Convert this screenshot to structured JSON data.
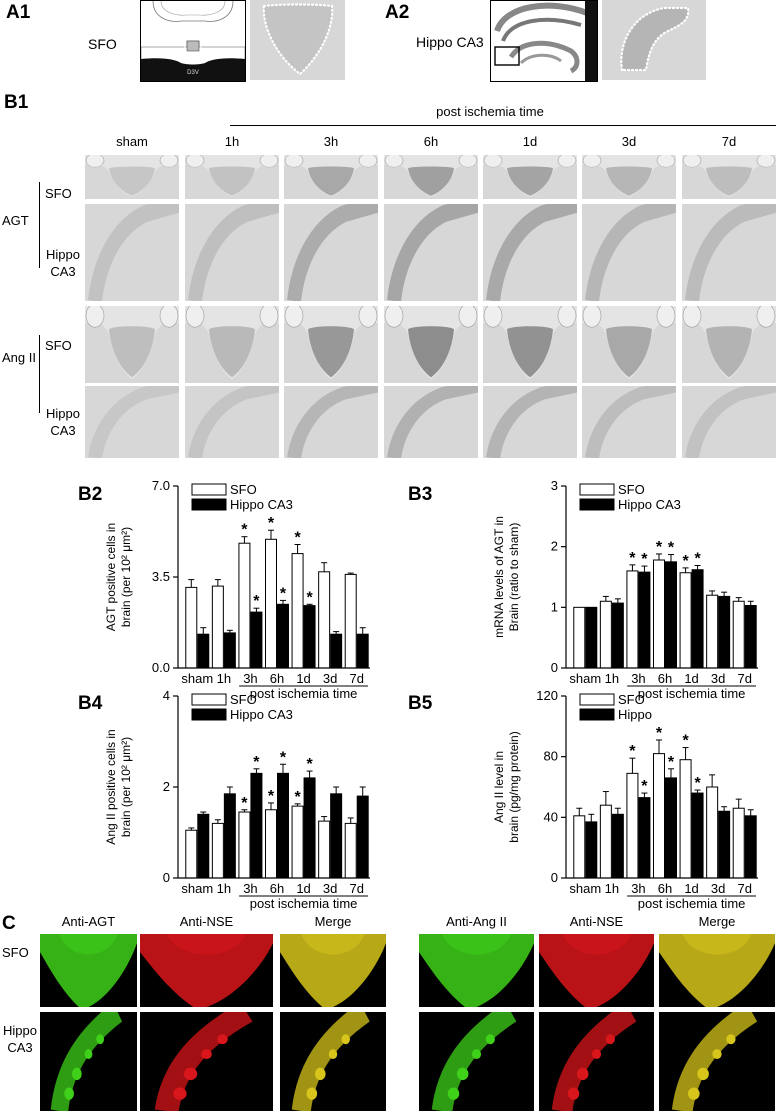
{
  "panels": {
    "a1": {
      "label": "A1",
      "region": "SFO",
      "diagram_text": "D3V"
    },
    "a2": {
      "label": "A2",
      "region": "Hippo CA3"
    },
    "b1": {
      "label": "B1",
      "time_header": "post ischemia time",
      "columns": [
        "sham",
        "1h",
        "3h",
        "6h",
        "1d",
        "3d",
        "7d"
      ],
      "groups": [
        {
          "name": "AGT",
          "rows": [
            "SFO",
            "Hippo CA3"
          ]
        },
        {
          "name": "Ang II",
          "rows": [
            "SFO",
            "Hippo CA3"
          ]
        }
      ]
    },
    "c": {
      "label": "C",
      "left_headers": [
        "Anti-AGT",
        "Anti-NSE",
        "Merge"
      ],
      "right_headers": [
        "Anti-Ang II",
        "Anti-NSE",
        "Merge"
      ],
      "rows": [
        "SFO",
        "Hippo CA3"
      ]
    }
  },
  "colors": {
    "bar_open": "#ffffff",
    "bar_filled": "#000000",
    "green": "#3fd11a",
    "red": "#d9161b",
    "merge": "#d7c51c"
  },
  "chart_data": [
    {
      "id": "B2",
      "type": "bar",
      "categories": [
        "sham",
        "1h",
        "3h",
        "6h",
        "1d",
        "3d",
        "7d"
      ],
      "series": [
        {
          "name": "SFO",
          "values": [
            3.1,
            3.15,
            4.8,
            4.95,
            4.4,
            3.7,
            3.6
          ],
          "err": [
            0.3,
            0.25,
            0.25,
            0.35,
            0.35,
            0.35,
            0.05
          ]
        },
        {
          "name": "Hippo CA3",
          "values": [
            1.3,
            1.35,
            2.15,
            2.45,
            2.4,
            1.3,
            1.3
          ],
          "err": [
            0.25,
            0.1,
            0.15,
            0.15,
            0.05,
            0.1,
            0.25
          ]
        }
      ],
      "significant": [
        [
          false,
          false,
          true,
          true,
          true,
          false,
          false
        ],
        [
          false,
          false,
          true,
          true,
          true,
          false,
          false
        ]
      ],
      "ylabel": "AGT positive cells in brain (per 10² μm²)",
      "xlabel": "post ischemia time",
      "ylim": [
        0,
        7.0
      ],
      "yticks": [
        "0.0",
        "3.5",
        "7.0"
      ],
      "ytick_values": [
        0,
        3.5,
        7.0
      ],
      "legend": "top-center"
    },
    {
      "id": "B3",
      "type": "bar",
      "categories": [
        "sham",
        "1h",
        "3h",
        "6h",
        "1d",
        "3d",
        "7d"
      ],
      "series": [
        {
          "name": "SFO",
          "values": [
            1.0,
            1.1,
            1.6,
            1.78,
            1.57,
            1.2,
            1.1
          ],
          "err": [
            0.0,
            0.08,
            0.1,
            0.1,
            0.08,
            0.07,
            0.06
          ]
        },
        {
          "name": "Hippo CA3",
          "values": [
            1.0,
            1.07,
            1.58,
            1.75,
            1.62,
            1.18,
            1.03
          ],
          "err": [
            0.0,
            0.07,
            0.1,
            0.12,
            0.07,
            0.07,
            0.07
          ]
        }
      ],
      "significant": [
        [
          false,
          false,
          true,
          true,
          true,
          false,
          false
        ],
        [
          false,
          false,
          true,
          true,
          true,
          false,
          false
        ]
      ],
      "ylabel": "mRNA levels of AGT in Brain (ratio to sham)",
      "xlabel": "post ischemia time",
      "ylim": [
        0,
        3
      ],
      "yticks": [
        "0",
        "1",
        "2",
        "3"
      ],
      "ytick_values": [
        0,
        1,
        2,
        3
      ],
      "legend": "top-center"
    },
    {
      "id": "B4",
      "type": "bar",
      "categories": [
        "sham",
        "1h",
        "3h",
        "6h",
        "1d",
        "3d",
        "7d"
      ],
      "series": [
        {
          "name": "SFO",
          "values": [
            1.05,
            1.2,
            1.45,
            1.5,
            1.58,
            1.25,
            1.2
          ],
          "err": [
            0.05,
            0.08,
            0.05,
            0.15,
            0.05,
            0.1,
            0.12
          ]
        },
        {
          "name": "Hippo CA3",
          "values": [
            1.4,
            1.85,
            2.3,
            2.3,
            2.2,
            1.85,
            1.8
          ],
          "err": [
            0.05,
            0.15,
            0.1,
            0.2,
            0.15,
            0.15,
            0.2
          ]
        }
      ],
      "significant": [
        [
          false,
          false,
          true,
          true,
          true,
          false,
          false
        ],
        [
          false,
          false,
          true,
          true,
          true,
          false,
          false
        ]
      ],
      "ylabel": "Ang II positive cells in brain  (per 10² μm²)",
      "xlabel": "post ischemia time",
      "ylim": [
        0,
        4
      ],
      "yticks": [
        "0",
        "2",
        "4"
      ],
      "ytick_values": [
        0,
        2,
        4
      ],
      "legend": "top-center"
    },
    {
      "id": "B5",
      "type": "bar",
      "categories": [
        "sham",
        "1h",
        "3h",
        "6h",
        "1d",
        "3d",
        "7d"
      ],
      "series": [
        {
          "name": "SFO",
          "values": [
            41,
            48,
            69,
            82,
            78,
            60,
            46
          ],
          "err": [
            5,
            9,
            10,
            9,
            8,
            8,
            6
          ]
        },
        {
          "name": "Hippo",
          "values": [
            37,
            42,
            53,
            66,
            56,
            44,
            41
          ],
          "err": [
            5,
            4,
            3,
            6,
            2,
            3,
            4
          ]
        }
      ],
      "significant": [
        [
          false,
          false,
          true,
          true,
          true,
          false,
          false
        ],
        [
          false,
          false,
          true,
          true,
          true,
          false,
          false
        ]
      ],
      "ylabel": "Ang II level in brain (pg/mg protein)",
      "xlabel": "post ischemia time",
      "ylim": [
        0,
        120
      ],
      "yticks": [
        "0",
        "40",
        "80",
        "120"
      ],
      "ytick_values": [
        0,
        40,
        80,
        120
      ],
      "legend": "top-center"
    }
  ]
}
